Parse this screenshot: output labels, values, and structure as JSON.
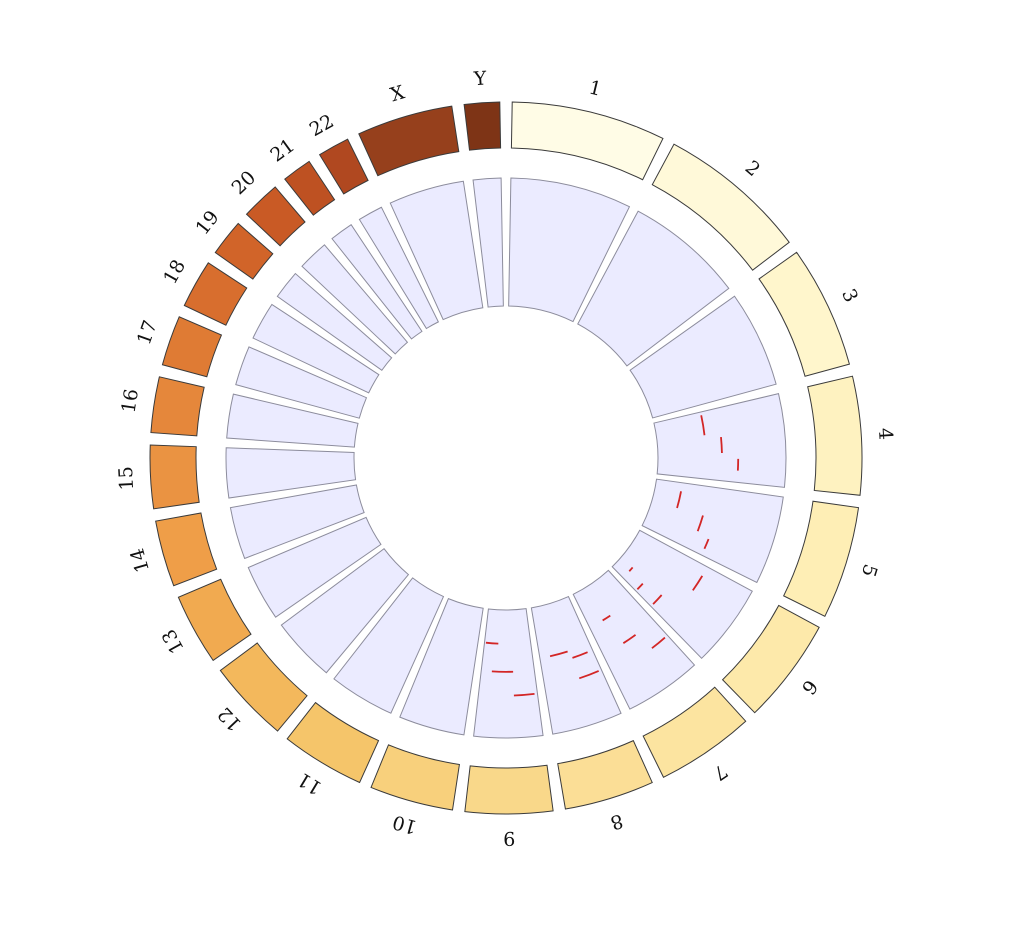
{
  "chart_data": {
    "type": "circos",
    "title": "",
    "chromosomes": [
      {
        "name": "1",
        "length": 249,
        "color": "#FFFCE6"
      },
      {
        "name": "2",
        "length": 243,
        "color": "#FFF9D9"
      },
      {
        "name": "3",
        "length": 198,
        "color": "#FFF6CC"
      },
      {
        "name": "4",
        "length": 191,
        "color": "#FEF2C0"
      },
      {
        "name": "5",
        "length": 182,
        "color": "#FEEEB5"
      },
      {
        "name": "6",
        "length": 171,
        "color": "#FDE9AA"
      },
      {
        "name": "7",
        "length": 159,
        "color": "#FCE4A0"
      },
      {
        "name": "8",
        "length": 145,
        "color": "#FBDE96"
      },
      {
        "name": "9",
        "length": 141,
        "color": "#F9D88A"
      },
      {
        "name": "10",
        "length": 135,
        "color": "#F8D07C"
      },
      {
        "name": "11",
        "length": 135,
        "color": "#F5C56A"
      },
      {
        "name": "12",
        "length": 133,
        "color": "#F3B85C"
      },
      {
        "name": "13",
        "length": 115,
        "color": "#F1AA50"
      },
      {
        "name": "14",
        "length": 107,
        "color": "#EF9E48"
      },
      {
        "name": "15",
        "length": 102,
        "color": "#EA9342"
      },
      {
        "name": "16",
        "length": 90,
        "color": "#E5873B"
      },
      {
        "name": "17",
        "length": 81,
        "color": "#DF7B34"
      },
      {
        "name": "18",
        "length": 78,
        "color": "#D86E2E"
      },
      {
        "name": "19",
        "length": 59,
        "color": "#D16429"
      },
      {
        "name": "20",
        "length": 63,
        "color": "#C95A25"
      },
      {
        "name": "21",
        "length": 48,
        "color": "#BE5122"
      },
      {
        "name": "22",
        "length": 51,
        "color": "#B04820"
      },
      {
        "name": "X",
        "length": 155,
        "color": "#96401C"
      },
      {
        "name": "Y",
        "length": 57,
        "color": "#7E3416"
      }
    ],
    "track_fill": "#EBEBFF",
    "segment_color": "#D32626",
    "segments": [
      {
        "chr": "4",
        "start": 0.7,
        "end": 0.85,
        "level": 0.65
      },
      {
        "chr": "4",
        "start": 0.4,
        "end": 0.62,
        "level": 0.5
      },
      {
        "chr": "4",
        "start": 0.05,
        "end": 0.35,
        "level": 0.35
      },
      {
        "chr": "5",
        "start": 0.75,
        "end": 0.9,
        "level": 0.52
      },
      {
        "chr": "5",
        "start": 0.45,
        "end": 0.7,
        "level": 0.4
      },
      {
        "chr": "5",
        "start": 0.15,
        "end": 0.45,
        "level": 0.15
      },
      {
        "chr": "6",
        "start": 0.15,
        "end": 0.4,
        "level": 0.62
      },
      {
        "chr": "6",
        "start": 0.75,
        "end": 0.95,
        "level": 0.42
      },
      {
        "chr": "6",
        "start": 0.82,
        "end": 0.96,
        "level": 0.22
      },
      {
        "chr": "6",
        "start": 0.72,
        "end": 0.82,
        "level": 0.05
      },
      {
        "chr": "7",
        "start": 0.05,
        "end": 0.3,
        "level": 0.72
      },
      {
        "chr": "7",
        "start": 0.38,
        "end": 0.62,
        "level": 0.53
      },
      {
        "chr": "7",
        "start": 0.55,
        "end": 0.72,
        "level": 0.25
      },
      {
        "chr": "8",
        "start": 0.05,
        "end": 0.4,
        "level": 0.65
      },
      {
        "chr": "8",
        "start": 0.1,
        "end": 0.4,
        "level": 0.45
      },
      {
        "chr": "8",
        "start": 0.45,
        "end": 0.8,
        "level": 0.38
      },
      {
        "chr": "9",
        "start": 0.05,
        "end": 0.4,
        "level": 0.7
      },
      {
        "chr": "9",
        "start": 0.4,
        "end": 0.8,
        "level": 0.48
      },
      {
        "chr": "9",
        "start": 0.7,
        "end": 0.97,
        "level": 0.22
      }
    ]
  }
}
